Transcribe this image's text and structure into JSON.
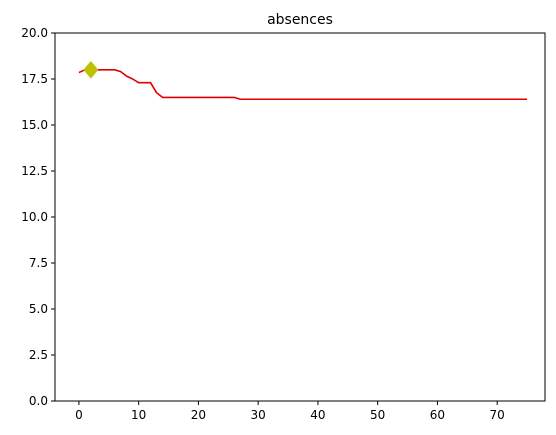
{
  "chart_data": {
    "type": "line",
    "title": "absences",
    "xlabel": "",
    "ylabel": "",
    "xlim": [
      -4,
      78
    ],
    "ylim": [
      0,
      20
    ],
    "xticks": [
      0,
      10,
      20,
      30,
      40,
      50,
      60,
      70
    ],
    "yticks": [
      0.0,
      2.5,
      5.0,
      7.5,
      10.0,
      12.5,
      15.0,
      17.5,
      20.0
    ],
    "xtick_labels": [
      "0",
      "10",
      "20",
      "30",
      "40",
      "50",
      "60",
      "70"
    ],
    "ytick_labels": [
      "0.0",
      "2.5",
      "5.0",
      "7.5",
      "10.0",
      "12.5",
      "15.0",
      "17.5",
      "20.0"
    ],
    "grid": false,
    "series": [
      {
        "color": "#e00000",
        "x": [
          0,
          1,
          2,
          3,
          4,
          5,
          6,
          7,
          8,
          9,
          10,
          11,
          12,
          13,
          14,
          15,
          16,
          17,
          18,
          19,
          20,
          21,
          22,
          23,
          24,
          25,
          26,
          27,
          28,
          29,
          30,
          35,
          40,
          45,
          50,
          55,
          60,
          65,
          70,
          75
        ],
        "y": [
          17.85,
          18.0,
          18.0,
          18.0,
          18.0,
          18.0,
          18.0,
          17.9,
          17.65,
          17.5,
          17.3,
          17.3,
          17.3,
          16.75,
          16.5,
          16.5,
          16.5,
          16.5,
          16.5,
          16.5,
          16.5,
          16.5,
          16.5,
          16.5,
          16.5,
          16.5,
          16.5,
          16.4,
          16.4,
          16.4,
          16.4,
          16.4,
          16.4,
          16.4,
          16.4,
          16.4,
          16.4,
          16.4,
          16.4,
          16.4
        ]
      }
    ],
    "markers": [
      {
        "shape": "diamond",
        "color": "#bfbf00",
        "x": 2,
        "y": 18.0
      }
    ]
  }
}
